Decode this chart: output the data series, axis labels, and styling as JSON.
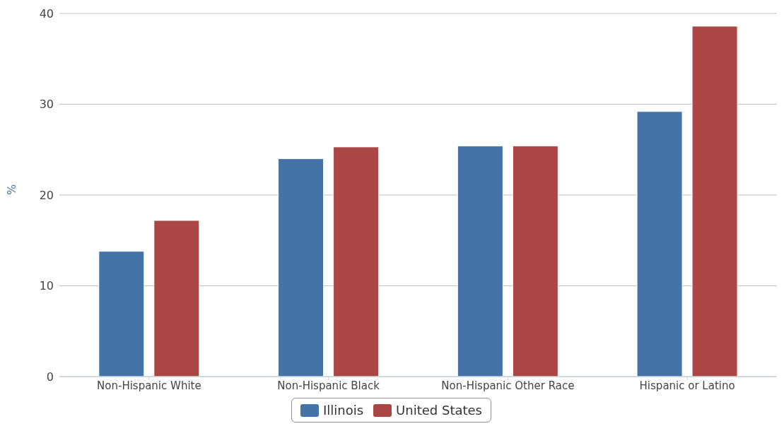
{
  "chart_data": {
    "type": "bar",
    "ylabel": "%",
    "categories": [
      "Non-Hispanic White",
      "Non-Hispanic Black",
      "Non-Hispanic Other Race",
      "Hispanic or Latino"
    ],
    "series": [
      {
        "name": "Illinois",
        "color": "#4572a7",
        "values": [
          13.8,
          24.0,
          25.4,
          29.2
        ]
      },
      {
        "name": "United States",
        "color": "#aa4643",
        "values": [
          17.2,
          25.3,
          25.4,
          38.6
        ]
      }
    ],
    "ylim": [
      0,
      40
    ],
    "yticks": [
      0,
      10,
      20,
      30,
      40
    ],
    "grid": "y",
    "legend": "bottom"
  }
}
